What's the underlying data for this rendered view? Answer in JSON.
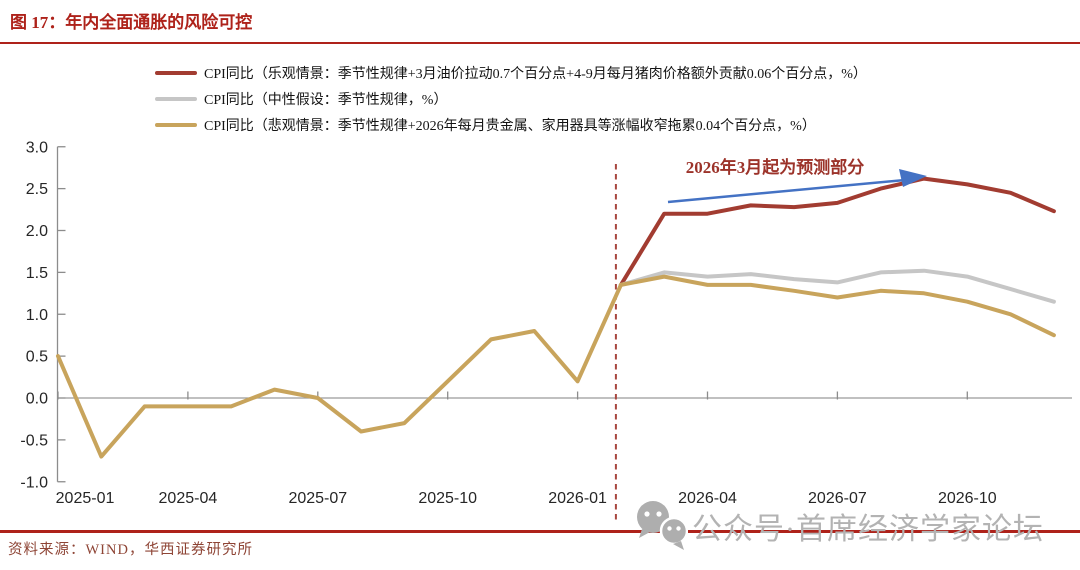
{
  "figure": {
    "title": "图 17：年内全面通胀的风险可控",
    "source": "资料来源：WIND，华西证券研究所",
    "colors": {
      "brand_red": "#ae221a",
      "axis_line": "#8c8c8c",
      "zero_line": "#9a9a9a",
      "axis_text": "#262626",
      "watermark_gray": "#b3b3b3"
    }
  },
  "legend": [
    {
      "label": "CPI同比（乐观情景：季节性规律+3月油价拉动0.7个百分点+4-9月每月猪肉价格额外贡献0.06个百分点，%）",
      "color": "#a23c31"
    },
    {
      "label": "CPI同比（中性假设：季节性规律，%）",
      "color": "#c6c6c6"
    },
    {
      "label": "CPI同比（悲观情景：季节性规律+2026年每月贵金属、家用器具等涨幅收窄拖累0.04个百分点，%）",
      "color": "#c8a45c"
    }
  ],
  "annotation": {
    "text": "2026年3月起为预测部分",
    "text_color": "#9c332a",
    "arrow_color": "#4472c4"
  },
  "watermark": {
    "text": "公众号·首席经济学家论坛"
  },
  "chart_data": {
    "type": "line",
    "x": [
      "2025-01",
      "2025-02",
      "2025-03",
      "2025-04",
      "2025-05",
      "2025-06",
      "2025-07",
      "2025-08",
      "2025-09",
      "2025-10",
      "2025-11",
      "2025-12",
      "2026-01",
      "2026-02",
      "2026-03",
      "2026-04",
      "2026-05",
      "2026-06",
      "2026-07",
      "2026-08",
      "2026-09",
      "2026-10",
      "2026-11",
      "2026-12"
    ],
    "x_tick_indices": [
      0,
      3,
      6,
      9,
      12,
      15,
      18,
      21
    ],
    "ylim": [
      -1.0,
      3.0
    ],
    "y_ticks": [
      3.0,
      2.5,
      2.0,
      1.5,
      1.0,
      0.5,
      0.0,
      -0.5,
      -1.0
    ],
    "grid": false,
    "forecast_divider_after": "2026-02",
    "series": [
      {
        "id": "optimistic",
        "name": "CPI同比（乐观情景）",
        "color": "#a23c31",
        "values": [
          null,
          null,
          null,
          null,
          null,
          null,
          null,
          null,
          null,
          null,
          null,
          null,
          null,
          1.35,
          2.2,
          2.2,
          2.3,
          2.28,
          2.33,
          2.5,
          2.62,
          2.55,
          2.45,
          2.23
        ]
      },
      {
        "id": "neutral",
        "name": "CPI同比（中性假设）",
        "color": "#c6c6c6",
        "values": [
          null,
          null,
          null,
          null,
          null,
          null,
          null,
          null,
          null,
          null,
          null,
          null,
          null,
          1.35,
          1.5,
          1.45,
          1.48,
          1.42,
          1.38,
          1.5,
          1.52,
          1.45,
          1.3,
          1.15
        ]
      },
      {
        "id": "pessimistic",
        "name": "CPI同比（悲观情景）",
        "color": "#c8a45c",
        "values": [
          null,
          null,
          null,
          null,
          null,
          null,
          null,
          null,
          null,
          null,
          null,
          null,
          null,
          1.35,
          1.45,
          1.35,
          1.35,
          1.28,
          1.2,
          1.28,
          1.25,
          1.15,
          1.0,
          0.75
        ]
      },
      {
        "id": "historical",
        "name": "CPI同比（历史值）",
        "color": "#c8a45c",
        "values": [
          0.5,
          -0.7,
          -0.1,
          -0.1,
          -0.1,
          0.1,
          0.0,
          -0.4,
          -0.3,
          0.2,
          0.7,
          0.8,
          0.2,
          1.35,
          null,
          null,
          null,
          null,
          null,
          null,
          null,
          null,
          null,
          null
        ]
      }
    ]
  }
}
